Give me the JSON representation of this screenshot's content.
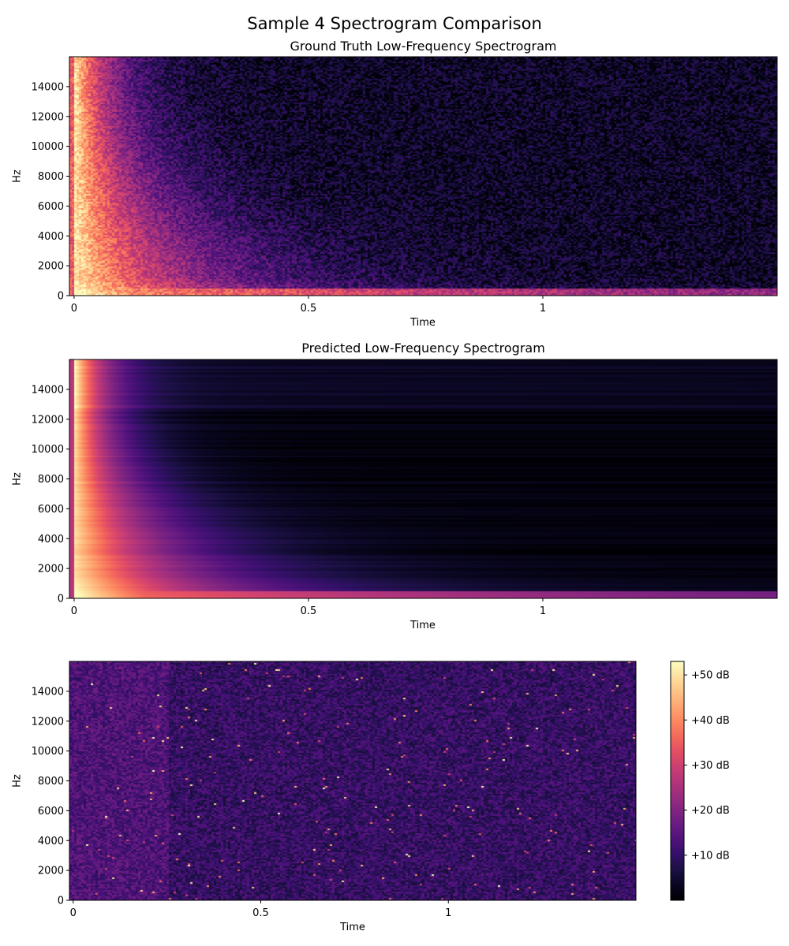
{
  "figure": {
    "suptitle": "Sample 4 Spectrogram Comparison"
  },
  "colormap": "magma",
  "chart_data": [
    {
      "type": "heatmap",
      "title": "Ground Truth Low-Frequency Spectrogram",
      "xlabel": "Time",
      "ylabel": "Hz",
      "xlim": [
        -0.01,
        1.5
      ],
      "ylim": [
        0,
        16000
      ],
      "xticks": [
        0,
        0.5,
        1
      ],
      "xtick_labels": [
        "0",
        "0.5",
        "1"
      ],
      "yticks": [
        0,
        2000,
        4000,
        6000,
        8000,
        10000,
        12000,
        14000
      ],
      "ytick_labels": [
        "0",
        "2000",
        "4000",
        "6000",
        "8000",
        "10000",
        "12000",
        "14000"
      ],
      "description": "energy concentrated at onset, decays over time; noisy texture"
    },
    {
      "type": "heatmap",
      "title": "Predicted Low-Frequency Spectrogram",
      "xlabel": "Time",
      "ylabel": "Hz",
      "xlim": [
        -0.01,
        1.5
      ],
      "ylim": [
        0,
        16000
      ],
      "xticks": [
        0,
        0.5,
        1
      ],
      "xtick_labels": [
        "0",
        "0.5",
        "1"
      ],
      "yticks": [
        0,
        2000,
        4000,
        6000,
        8000,
        10000,
        12000,
        14000
      ],
      "ytick_labels": [
        "0",
        "2000",
        "4000",
        "6000",
        "8000",
        "10000",
        "12000",
        "14000"
      ],
      "description": "smooth decay from onset, horizontal banding"
    },
    {
      "type": "heatmap",
      "title": "",
      "xlabel": "Time",
      "ylabel": "Hz",
      "xlim": [
        -0.01,
        1.5
      ],
      "ylim": [
        0,
        16000
      ],
      "xticks": [
        0,
        0.5,
        1
      ],
      "xtick_labels": [
        "0",
        "0.5",
        "1"
      ],
      "yticks": [
        0,
        2000,
        4000,
        6000,
        8000,
        10000,
        12000,
        14000
      ],
      "ytick_labels": [
        "0",
        "2000",
        "4000",
        "6000",
        "8000",
        "10000",
        "12000",
        "14000"
      ],
      "description": "low-level noisy difference"
    }
  ],
  "colorbar": {
    "ticks": [
      "+10 dB",
      "+20 dB",
      "+30 dB",
      "+40 dB",
      "+50 dB"
    ],
    "tick_values": [
      10,
      20,
      30,
      40,
      50
    ],
    "range": [
      0,
      53
    ]
  }
}
